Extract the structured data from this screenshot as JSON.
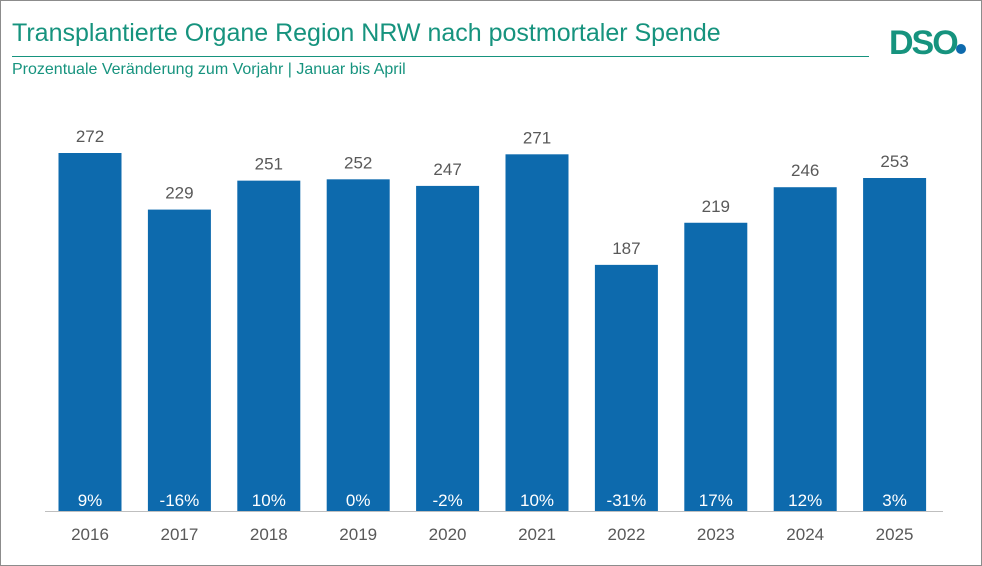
{
  "title": "Transplantierte Organe Region NRW nach postmortaler Spende",
  "subtitle": "Prozentuale Veränderung zum Vorjahr | Januar bis April",
  "logo": {
    "text": "DSO",
    "text_color": "#16937e",
    "dot_color": "#0d6aad"
  },
  "colors": {
    "bar": "#0d6aad",
    "value_label": "#595959",
    "pct_label": "#ffffff",
    "axis_text": "#595959",
    "axis_line": "#bfbfbf"
  },
  "chart_data": {
    "type": "bar",
    "title": "Transplantierte Organe Region NRW nach postmortaler Spende",
    "subtitle": "Prozentuale Veränderung zum Vorjahr | Januar bis April",
    "xlabel": "",
    "ylabel": "",
    "categories": [
      "2016",
      "2017",
      "2018",
      "2019",
      "2020",
      "2021",
      "2022",
      "2023",
      "2024",
      "2025"
    ],
    "values": [
      272,
      229,
      251,
      252,
      247,
      271,
      187,
      219,
      246,
      253
    ],
    "change_labels": [
      "9%",
      "-16%",
      "10%",
      "0%",
      "-2%",
      "10%",
      "-31%",
      "17%",
      "12%",
      "3%"
    ],
    "ylim": [
      0,
      272
    ],
    "grid": false,
    "legend": "none"
  }
}
